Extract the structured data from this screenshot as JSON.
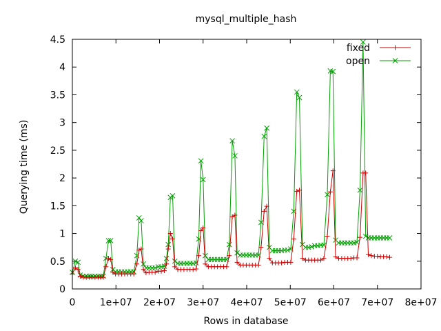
{
  "chart_data": {
    "type": "line",
    "title": "mysql_multiple_hash",
    "xlabel": "Rows in database",
    "ylabel": "Querying time (ms)",
    "xlim": [
      0,
      80000000
    ],
    "ylim": [
      0,
      4.5
    ],
    "xticks": [
      0,
      10000000,
      20000000,
      30000000,
      40000000,
      50000000,
      60000000,
      70000000,
      80000000
    ],
    "xtick_labels": [
      "0",
      "1e+07",
      "2e+07",
      "3e+07",
      "4e+07",
      "5e+07",
      "6e+07",
      "7e+07",
      "8e+07"
    ],
    "yticks": [
      0,
      0.5,
      1,
      1.5,
      2,
      2.5,
      3,
      3.5,
      4,
      4.5
    ],
    "ytick_labels": [
      "0",
      "0.5",
      "1",
      "1.5",
      "2",
      "2.5",
      "3",
      "3.5",
      "4",
      "4.5"
    ],
    "grid": false,
    "legend_position": "top-right",
    "series": [
      {
        "name": "fixed",
        "color": "#cc0000",
        "marker": "plus",
        "points": [
          [
            0,
            0.27
          ],
          [
            700000,
            0.38
          ],
          [
            1300000,
            0.35
          ],
          [
            1800000,
            0.23
          ],
          [
            2500000,
            0.21
          ],
          [
            3200000,
            0.21
          ],
          [
            3900000,
            0.21
          ],
          [
            4500000,
            0.21
          ],
          [
            5200000,
            0.21
          ],
          [
            5900000,
            0.21
          ],
          [
            6500000,
            0.21
          ],
          [
            7100000,
            0.21
          ],
          [
            7700000,
            0.4
          ],
          [
            8300000,
            0.55
          ],
          [
            8800000,
            0.53
          ],
          [
            9300000,
            0.3
          ],
          [
            9900000,
            0.27
          ],
          [
            10600000,
            0.27
          ],
          [
            11300000,
            0.27
          ],
          [
            12000000,
            0.27
          ],
          [
            12700000,
            0.27
          ],
          [
            13400000,
            0.27
          ],
          [
            14100000,
            0.27
          ],
          [
            14800000,
            0.45
          ],
          [
            15300000,
            0.7
          ],
          [
            15800000,
            0.72
          ],
          [
            16300000,
            0.35
          ],
          [
            16900000,
            0.29
          ],
          [
            17600000,
            0.3
          ],
          [
            18300000,
            0.3
          ],
          [
            19000000,
            0.3
          ],
          [
            19700000,
            0.32
          ],
          [
            20400000,
            0.32
          ],
          [
            21100000,
            0.33
          ],
          [
            21600000,
            0.45
          ],
          [
            22000000,
            0.72
          ],
          [
            22500000,
            1.0
          ],
          [
            23000000,
            0.9
          ],
          [
            23500000,
            0.4
          ],
          [
            24200000,
            0.35
          ],
          [
            24900000,
            0.35
          ],
          [
            25600000,
            0.35
          ],
          [
            26300000,
            0.35
          ],
          [
            27000000,
            0.35
          ],
          [
            27700000,
            0.35
          ],
          [
            28400000,
            0.36
          ],
          [
            29000000,
            0.6
          ],
          [
            29500000,
            1.05
          ],
          [
            30000000,
            1.1
          ],
          [
            30500000,
            0.45
          ],
          [
            31200000,
            0.4
          ],
          [
            31900000,
            0.4
          ],
          [
            32600000,
            0.4
          ],
          [
            33300000,
            0.4
          ],
          [
            34000000,
            0.4
          ],
          [
            34700000,
            0.4
          ],
          [
            35400000,
            0.4
          ],
          [
            36000000,
            0.6
          ],
          [
            36700000,
            1.3
          ],
          [
            37300000,
            1.33
          ],
          [
            37800000,
            0.48
          ],
          [
            38500000,
            0.43
          ],
          [
            39200000,
            0.43
          ],
          [
            39900000,
            0.43
          ],
          [
            40600000,
            0.43
          ],
          [
            41300000,
            0.43
          ],
          [
            42000000,
            0.43
          ],
          [
            42700000,
            0.43
          ],
          [
            43300000,
            0.75
          ],
          [
            44000000,
            1.4
          ],
          [
            44600000,
            1.49
          ],
          [
            45200000,
            0.55
          ],
          [
            45900000,
            0.47
          ],
          [
            46600000,
            0.47
          ],
          [
            47300000,
            0.47
          ],
          [
            48000000,
            0.47
          ],
          [
            48700000,
            0.48
          ],
          [
            49400000,
            0.48
          ],
          [
            50100000,
            0.48
          ],
          [
            50800000,
            0.9
          ],
          [
            51500000,
            1.76
          ],
          [
            52100000,
            1.78
          ],
          [
            52800000,
            0.55
          ],
          [
            53500000,
            0.52
          ],
          [
            54200000,
            0.52
          ],
          [
            54900000,
            0.52
          ],
          [
            55600000,
            0.52
          ],
          [
            56300000,
            0.52
          ],
          [
            57000000,
            0.52
          ],
          [
            57700000,
            0.55
          ],
          [
            58500000,
            0.95
          ],
          [
            59200000,
            1.75
          ],
          [
            59800000,
            2.13
          ],
          [
            60400000,
            0.58
          ],
          [
            61100000,
            0.55
          ],
          [
            61800000,
            0.55
          ],
          [
            62500000,
            0.55
          ],
          [
            63200000,
            0.55
          ],
          [
            63900000,
            0.55
          ],
          [
            64600000,
            0.56
          ],
          [
            65300000,
            0.56
          ],
          [
            66000000,
            0.93
          ],
          [
            66700000,
            2.09
          ],
          [
            67300000,
            2.09
          ],
          [
            67900000,
            0.62
          ],
          [
            68600000,
            0.6
          ],
          [
            69300000,
            0.59
          ],
          [
            70000000,
            0.59
          ],
          [
            70700000,
            0.58
          ],
          [
            71400000,
            0.58
          ],
          [
            72100000,
            0.58
          ],
          [
            72800000,
            0.57
          ]
        ]
      },
      {
        "name": "open",
        "color": "#00a000",
        "marker": "x",
        "points": [
          [
            0,
            0.3
          ],
          [
            700000,
            0.5
          ],
          [
            1300000,
            0.48
          ],
          [
            1800000,
            0.25
          ],
          [
            2500000,
            0.23
          ],
          [
            3200000,
            0.23
          ],
          [
            3900000,
            0.23
          ],
          [
            4500000,
            0.23
          ],
          [
            5200000,
            0.23
          ],
          [
            5900000,
            0.23
          ],
          [
            6500000,
            0.23
          ],
          [
            7100000,
            0.23
          ],
          [
            7700000,
            0.55
          ],
          [
            8300000,
            0.87
          ],
          [
            8800000,
            0.87
          ],
          [
            9300000,
            0.35
          ],
          [
            9900000,
            0.31
          ],
          [
            10600000,
            0.31
          ],
          [
            11300000,
            0.31
          ],
          [
            12000000,
            0.31
          ],
          [
            12700000,
            0.31
          ],
          [
            13400000,
            0.31
          ],
          [
            14100000,
            0.31
          ],
          [
            14800000,
            0.6
          ],
          [
            15300000,
            1.28
          ],
          [
            15800000,
            1.23
          ],
          [
            16300000,
            0.45
          ],
          [
            16900000,
            0.38
          ],
          [
            17600000,
            0.38
          ],
          [
            18300000,
            0.38
          ],
          [
            19000000,
            0.38
          ],
          [
            19700000,
            0.4
          ],
          [
            20400000,
            0.4
          ],
          [
            21100000,
            0.41
          ],
          [
            21600000,
            0.55
          ],
          [
            22000000,
            0.8
          ],
          [
            22500000,
            1.65
          ],
          [
            23000000,
            1.68
          ],
          [
            23500000,
            0.5
          ],
          [
            24200000,
            0.46
          ],
          [
            24900000,
            0.46
          ],
          [
            25600000,
            0.46
          ],
          [
            26300000,
            0.46
          ],
          [
            27000000,
            0.46
          ],
          [
            27700000,
            0.46
          ],
          [
            28400000,
            0.47
          ],
          [
            29000000,
            0.9
          ],
          [
            29500000,
            2.31
          ],
          [
            30000000,
            1.97
          ],
          [
            30500000,
            0.6
          ],
          [
            31200000,
            0.53
          ],
          [
            31900000,
            0.53
          ],
          [
            32600000,
            0.53
          ],
          [
            33300000,
            0.53
          ],
          [
            34000000,
            0.53
          ],
          [
            34700000,
            0.53
          ],
          [
            35400000,
            0.53
          ],
          [
            36000000,
            0.8
          ],
          [
            36700000,
            2.67
          ],
          [
            37300000,
            2.4
          ],
          [
            37800000,
            0.65
          ],
          [
            38500000,
            0.61
          ],
          [
            39200000,
            0.61
          ],
          [
            39900000,
            0.61
          ],
          [
            40600000,
            0.61
          ],
          [
            41300000,
            0.61
          ],
          [
            42000000,
            0.61
          ],
          [
            42700000,
            0.61
          ],
          [
            43300000,
            1.2
          ],
          [
            44000000,
            2.75
          ],
          [
            44600000,
            2.9
          ],
          [
            45200000,
            0.75
          ],
          [
            45900000,
            0.69
          ],
          [
            46600000,
            0.69
          ],
          [
            47300000,
            0.69
          ],
          [
            48000000,
            0.69
          ],
          [
            48700000,
            0.7
          ],
          [
            49400000,
            0.7
          ],
          [
            50100000,
            0.72
          ],
          [
            50800000,
            1.4
          ],
          [
            51500000,
            3.55
          ],
          [
            52100000,
            3.45
          ],
          [
            52800000,
            0.8
          ],
          [
            53500000,
            0.75
          ],
          [
            54200000,
            0.75
          ],
          [
            54900000,
            0.76
          ],
          [
            55600000,
            0.78
          ],
          [
            56300000,
            0.78
          ],
          [
            57000000,
            0.79
          ],
          [
            57700000,
            0.79
          ],
          [
            58500000,
            1.7
          ],
          [
            59200000,
            3.93
          ],
          [
            59800000,
            3.92
          ],
          [
            60400000,
            0.88
          ],
          [
            61100000,
            0.83
          ],
          [
            61800000,
            0.83
          ],
          [
            62500000,
            0.83
          ],
          [
            63200000,
            0.83
          ],
          [
            63900000,
            0.83
          ],
          [
            64600000,
            0.83
          ],
          [
            65300000,
            0.84
          ],
          [
            66000000,
            1.78
          ],
          [
            66700000,
            4.45
          ],
          [
            67300000,
            0.95
          ],
          [
            67900000,
            0.92
          ],
          [
            68600000,
            0.92
          ],
          [
            69300000,
            0.92
          ],
          [
            70000000,
            0.92
          ],
          [
            70700000,
            0.92
          ],
          [
            71400000,
            0.92
          ],
          [
            72100000,
            0.92
          ],
          [
            72800000,
            0.92
          ]
        ]
      }
    ]
  }
}
